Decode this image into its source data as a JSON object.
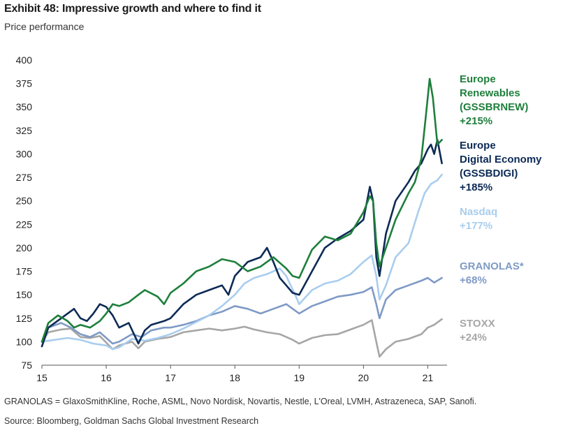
{
  "title": "Exhibit 48: Impressive growth and where to find it",
  "subtitle": "Price performance",
  "footnote": "GRANOLAS = GlaxoSmithKline, Roche, ASML, Novo Nordisk, Novartis, Nestle, L'Oreal, LVMH, Astrazeneca, SAP, Sanofi.",
  "source": "Source: Bloomberg, Goldman Sachs Global Investment Research",
  "chart_data": {
    "type": "line",
    "title": "Exhibit 48: Impressive growth and where to find it",
    "subtitle": "Price performance",
    "xlabel": "",
    "ylabel": "",
    "xlim": [
      15,
      21.3
    ],
    "ylim": [
      75,
      400
    ],
    "x_ticks": [
      "15",
      "16",
      "17",
      "18",
      "19",
      "20",
      "21"
    ],
    "y_ticks": [
      "75",
      "100",
      "125",
      "150",
      "175",
      "200",
      "225",
      "250",
      "275",
      "300",
      "325",
      "350",
      "375",
      "400"
    ],
    "grid": false,
    "legend": "right (direct labels)",
    "series": [
      {
        "name": "STOXX",
        "label_lines": [
          "STOXX",
          "+24%"
        ],
        "color": "#a6a6a6",
        "x": [
          15,
          15.1,
          15.3,
          15.45,
          15.6,
          15.75,
          15.9,
          16.1,
          16.2,
          16.4,
          16.5,
          16.6,
          16.8,
          17,
          17.2,
          17.4,
          17.6,
          17.8,
          18,
          18.15,
          18.3,
          18.5,
          18.7,
          18.9,
          19,
          19.2,
          19.4,
          19.6,
          19.8,
          20,
          20.13,
          20.2,
          20.25,
          20.35,
          20.5,
          20.7,
          20.9,
          21,
          21.1,
          21.22
        ],
        "values": [
          100,
          110,
          113,
          114,
          105,
          104,
          106,
          92,
          96,
          100,
          93,
          100,
          103,
          105,
          110,
          112,
          114,
          112,
          114,
          116,
          113,
          110,
          108,
          102,
          98,
          104,
          107,
          108,
          113,
          118,
          123,
          100,
          84,
          92,
          100,
          103,
          108,
          115,
          118,
          124
        ]
      },
      {
        "name": "GRANOLAS*",
        "label_lines": [
          "GRANOLAS*",
          "+68%"
        ],
        "color": "#7f9ac6",
        "x": [
          15,
          15.1,
          15.3,
          15.45,
          15.6,
          15.75,
          15.9,
          16.1,
          16.2,
          16.4,
          16.55,
          16.7,
          16.9,
          17,
          17.2,
          17.4,
          17.6,
          17.8,
          18,
          18.2,
          18.4,
          18.6,
          18.8,
          19,
          19.2,
          19.4,
          19.6,
          19.8,
          20,
          20.13,
          20.2,
          20.25,
          20.35,
          20.5,
          20.7,
          20.9,
          21,
          21.1,
          21.22
        ],
        "values": [
          100,
          115,
          120,
          115,
          108,
          105,
          110,
          98,
          100,
          108,
          105,
          112,
          115,
          115,
          118,
          122,
          128,
          132,
          138,
          135,
          130,
          135,
          140,
          130,
          138,
          143,
          148,
          150,
          153,
          158,
          140,
          125,
          145,
          155,
          160,
          165,
          168,
          163,
          168
        ]
      },
      {
        "name": "Nasdaq",
        "label_lines": [
          "Nasdaq",
          "+177%"
        ],
        "color": "#a9cdee",
        "x": [
          15,
          15.2,
          15.4,
          15.6,
          15.8,
          16,
          16.1,
          16.2,
          16.4,
          16.6,
          16.8,
          17,
          17.2,
          17.4,
          17.6,
          17.8,
          18,
          18.15,
          18.3,
          18.5,
          18.7,
          18.8,
          18.95,
          19,
          19.2,
          19.4,
          19.6,
          19.8,
          20,
          20.13,
          20.2,
          20.25,
          20.35,
          20.5,
          20.7,
          20.85,
          20.95,
          21.05,
          21.15,
          21.22
        ],
        "values": [
          100,
          102,
          104,
          102,
          98,
          96,
          92,
          94,
          103,
          101,
          104,
          108,
          114,
          121,
          128,
          138,
          150,
          162,
          168,
          172,
          178,
          170,
          148,
          140,
          155,
          162,
          165,
          172,
          185,
          192,
          170,
          145,
          160,
          190,
          205,
          238,
          258,
          268,
          272,
          278
        ]
      },
      {
        "name": "Europe Digital Economy (GSSBDIGI)",
        "label_lines": [
          "Europe",
          "Digital Economy",
          "(GSSBDIGI)",
          "+185%"
        ],
        "color": "#0c2a55",
        "x": [
          15,
          15.1,
          15.3,
          15.5,
          15.6,
          15.7,
          15.8,
          15.9,
          16,
          16.1,
          16.2,
          16.35,
          16.5,
          16.6,
          16.7,
          16.8,
          16.9,
          17,
          17.2,
          17.4,
          17.6,
          17.8,
          17.9,
          18,
          18.2,
          18.4,
          18.5,
          18.6,
          18.7,
          18.8,
          18.9,
          19,
          19.2,
          19.4,
          19.6,
          19.8,
          20,
          20.1,
          20.15,
          20.2,
          20.25,
          20.35,
          20.5,
          20.7,
          20.8,
          20.9,
          21,
          21.05,
          21.1,
          21.15,
          21.22
        ],
        "values": [
          95,
          115,
          125,
          135,
          125,
          122,
          130,
          140,
          137,
          128,
          115,
          120,
          98,
          112,
          118,
          120,
          122,
          125,
          140,
          150,
          155,
          160,
          150,
          170,
          185,
          190,
          200,
          185,
          168,
          160,
          152,
          150,
          175,
          200,
          210,
          218,
          230,
          265,
          250,
          190,
          170,
          215,
          250,
          270,
          282,
          290,
          305,
          310,
          300,
          315,
          290
        ]
      },
      {
        "name": "Europe Renewables (GSSBRNEW)",
        "label_lines": [
          "Europe",
          "Renewables",
          "(GSSBRNEW)",
          "+215%"
        ],
        "color": "#1e7f3c",
        "x": [
          15,
          15.1,
          15.25,
          15.4,
          15.5,
          15.6,
          15.75,
          15.9,
          16,
          16.1,
          16.2,
          16.35,
          16.5,
          16.6,
          16.8,
          16.9,
          17,
          17.2,
          17.4,
          17.6,
          17.8,
          18,
          18.2,
          18.4,
          18.6,
          18.8,
          18.9,
          19,
          19.2,
          19.4,
          19.6,
          19.8,
          20,
          20.1,
          20.15,
          20.2,
          20.25,
          20.35,
          20.5,
          20.7,
          20.8,
          20.9,
          20.97,
          21.03,
          21.08,
          21.15,
          21.22
        ],
        "values": [
          100,
          120,
          128,
          122,
          115,
          118,
          115,
          122,
          130,
          140,
          138,
          142,
          150,
          155,
          148,
          140,
          152,
          162,
          175,
          180,
          188,
          185,
          175,
          180,
          190,
          178,
          170,
          168,
          198,
          212,
          208,
          215,
          238,
          255,
          250,
          205,
          180,
          200,
          230,
          258,
          270,
          295,
          340,
          380,
          360,
          310,
          315
        ]
      }
    ]
  }
}
